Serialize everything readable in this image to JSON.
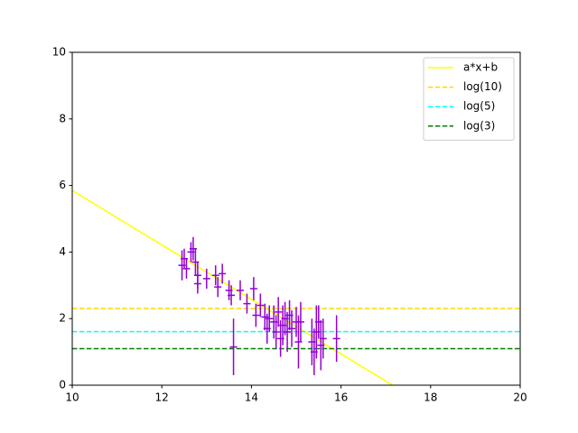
{
  "chart_data": {
    "type": "line",
    "xlim": [
      10,
      20
    ],
    "ylim": [
      0,
      10
    ],
    "xticks": [
      10,
      12,
      14,
      16,
      18,
      20
    ],
    "yticks": [
      0,
      2,
      4,
      6,
      8,
      10
    ],
    "legend": "upper right",
    "series": [
      {
        "name": "a*x+b",
        "color": "#ffff00",
        "dash": false,
        "x": [
          10,
          17.15
        ],
        "values": [
          5.85,
          0
        ]
      },
      {
        "name": "log(10)",
        "color": "#ffd700",
        "dash": true,
        "x": [
          10,
          20
        ],
        "values": [
          2.3026,
          2.3026
        ]
      },
      {
        "name": "log(5)",
        "color": "#00ffff",
        "dash": true,
        "x": [
          10,
          20
        ],
        "values": [
          1.6094,
          1.6094
        ]
      },
      {
        "name": "log(3)",
        "color": "#008000",
        "dash": true,
        "x": [
          10,
          20
        ],
        "values": [
          1.0986,
          1.0986
        ]
      }
    ],
    "errorbars": {
      "color": "#9400d3",
      "x": [
        12.45,
        12.5,
        12.55,
        12.65,
        12.7,
        12.75,
        12.8,
        12.8,
        13.0,
        13.2,
        13.25,
        13.35,
        13.5,
        13.55,
        13.6,
        13.75,
        13.9,
        14.05,
        14.1,
        14.2,
        14.3,
        14.35,
        14.4,
        14.5,
        14.55,
        14.6,
        14.65,
        14.7,
        14.75,
        14.8,
        14.85,
        14.9,
        15.0,
        15.05,
        15.1,
        15.35,
        15.4,
        15.45,
        15.5,
        15.55,
        15.6,
        15.9
      ],
      "values": [
        3.6,
        3.8,
        3.5,
        4.0,
        4.1,
        3.7,
        3.3,
        3.05,
        3.2,
        3.3,
        2.95,
        3.35,
        2.85,
        2.7,
        1.15,
        2.85,
        2.45,
        2.9,
        2.1,
        2.4,
        2.05,
        1.7,
        2.0,
        1.9,
        1.6,
        2.2,
        1.4,
        1.8,
        2.0,
        1.6,
        2.1,
        1.7,
        1.9,
        1.3,
        1.9,
        1.3,
        1.0,
        1.6,
        1.9,
        1.2,
        1.4,
        1.4
      ],
      "errors": [
        0.45,
        0.3,
        0.3,
        0.3,
        0.35,
        0.4,
        0.4,
        0.3,
        0.3,
        0.3,
        0.3,
        0.3,
        0.3,
        0.3,
        0.85,
        0.3,
        0.3,
        0.35,
        0.35,
        0.35,
        0.4,
        0.45,
        0.4,
        0.5,
        0.5,
        0.45,
        0.55,
        0.6,
        0.5,
        0.6,
        0.45,
        0.55,
        0.45,
        0.8,
        0.6,
        0.7,
        0.7,
        0.8,
        0.5,
        0.75,
        0.6,
        0.7
      ]
    }
  }
}
